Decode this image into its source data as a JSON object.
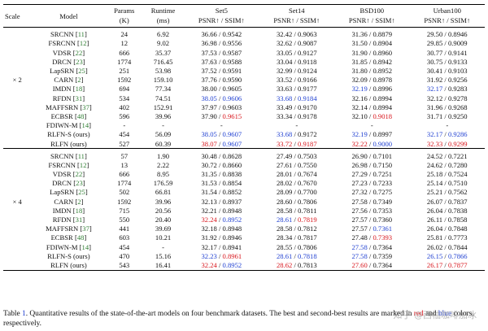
{
  "headers": {
    "scale": "Scale",
    "model": "Model",
    "params": "Params",
    "params_unit": "(K)",
    "runtime": "Runtime",
    "runtime_unit": "(ms)",
    "datasets": [
      "Set5",
      "Set14",
      "BSD100",
      "Urban100"
    ],
    "metric": "PSNR↑ / SSIM↑"
  },
  "groups": [
    {
      "scale": "× 2",
      "rows": [
        {
          "name": "SRCNN",
          "ref": "11",
          "params": "24",
          "runtime": "6.92",
          "bold": false,
          "cells": [
            {
              "p": "36.66",
              "s": "0.9542"
            },
            {
              "p": "32.42",
              "s": "0.9063"
            },
            {
              "p": "31.36",
              "s": "0.8879"
            },
            {
              "p": "29.50",
              "s": "0.8946"
            }
          ]
        },
        {
          "name": "FSRCNN",
          "ref": "12",
          "params": "12",
          "runtime": "9.02",
          "bold": false,
          "cells": [
            {
              "p": "36.98",
              "s": "0.9556"
            },
            {
              "p": "32.62",
              "s": "0.9087"
            },
            {
              "p": "31.50",
              "s": "0.8904"
            },
            {
              "p": "29.85",
              "s": "0.9009"
            }
          ]
        },
        {
          "name": "VDSR",
          "ref": "22",
          "params": "666",
          "runtime": "35.37",
          "bold": false,
          "cells": [
            {
              "p": "37.53",
              "s": "0.9587"
            },
            {
              "p": "33.05",
              "s": "0.9127"
            },
            {
              "p": "31.90",
              "s": "0.8960"
            },
            {
              "p": "30.77",
              "s": "0.9141"
            }
          ]
        },
        {
          "name": "DRCN",
          "ref": "23",
          "params": "1774",
          "runtime": "716.45",
          "bold": false,
          "cells": [
            {
              "p": "37.63",
              "s": "0.9588"
            },
            {
              "p": "33.04",
              "s": "0.9118"
            },
            {
              "p": "31.85",
              "s": "0.8942"
            },
            {
              "p": "30.75",
              "s": "0.9133"
            }
          ]
        },
        {
          "name": "LapSRN",
          "ref": "25",
          "params": "251",
          "runtime": "53.98",
          "bold": false,
          "cells": [
            {
              "p": "37.52",
              "s": "0.9591"
            },
            {
              "p": "32.99",
              "s": "0.9124"
            },
            {
              "p": "31.80",
              "s": "0.8952"
            },
            {
              "p": "30.41",
              "s": "0.9103"
            }
          ]
        },
        {
          "name": "CARN",
          "ref": "2",
          "params": "1592",
          "runtime": "159.10",
          "bold": false,
          "cells": [
            {
              "p": "37.76",
              "s": "0.9590"
            },
            {
              "p": "33.52",
              "s": "0.9166"
            },
            {
              "p": "32.09",
              "s": "0.8978"
            },
            {
              "p": "31.92",
              "s": "0.9256"
            }
          ]
        },
        {
          "name": "IMDN",
          "ref": "18",
          "params": "694",
          "runtime": "77.34",
          "bold": false,
          "cells": [
            {
              "p": "38.00",
              "s": "0.9605"
            },
            {
              "p": "33.63",
              "s": "0.9177"
            },
            {
              "p": "32.19",
              "s": "0.8996",
              "pc": "blue"
            },
            {
              "p": "32.17",
              "s": "0.9283",
              "pc": "blue"
            }
          ]
        },
        {
          "name": "RFDN",
          "ref": "31",
          "params": "534",
          "runtime": "74.51",
          "bold": false,
          "cells": [
            {
              "p": "38.05",
              "s": "0.9606",
              "pc": "blue",
              "sc": "blue"
            },
            {
              "p": "33.68",
              "s": "0.9184",
              "pc": "blue",
              "sc": "blue"
            },
            {
              "p": "32.16",
              "s": "0.8994"
            },
            {
              "p": "32.12",
              "s": "0.9278"
            }
          ]
        },
        {
          "name": "MAFFSRN",
          "ref": "37",
          "params": "402",
          "runtime": "152.91",
          "bold": false,
          "cells": [
            {
              "p": "37.97",
              "s": "0.9603"
            },
            {
              "p": "33.49",
              "s": "0.9170"
            },
            {
              "p": "32.14",
              "s": "0.8994"
            },
            {
              "p": "31.96",
              "s": "0.9268"
            }
          ]
        },
        {
          "name": "ECBSR",
          "ref": "48",
          "params": "596",
          "runtime": "39.96",
          "bold": false,
          "cells": [
            {
              "p": "37.90",
              "s": "0.9615",
              "sc": "red"
            },
            {
              "p": "33.34",
              "s": "0.9178"
            },
            {
              "p": "32.10",
              "s": "0.9018",
              "sc": "red"
            },
            {
              "p": "31.71",
              "s": "0.9250"
            }
          ]
        },
        {
          "name": "FDIWN-M",
          "ref": "14",
          "params": "-",
          "runtime": "-",
          "bold": false,
          "cells": [
            {
              "p": "-",
              "s": "-",
              "dash": true
            },
            {
              "p": "-",
              "s": "-",
              "dash": true
            },
            {
              "p": "-",
              "s": "-",
              "dash": true
            },
            {
              "p": "-",
              "s": "-",
              "dash": true
            }
          ]
        },
        {
          "name": "RLFN-S (ours)",
          "ref": "",
          "params": "454",
          "runtime": "56.09",
          "bold": true,
          "cells": [
            {
              "p": "38.05",
              "s": "0.9607",
              "pc": "blue",
              "sc": "blue"
            },
            {
              "p": "33.68",
              "s": "0.9172",
              "pc": "blue"
            },
            {
              "p": "32.19",
              "s": "0.8997",
              "pc": "blue"
            },
            {
              "p": "32.17",
              "s": "0.9286",
              "pc": "blue",
              "sc": "blue"
            }
          ]
        },
        {
          "name": "RLFN (ours)",
          "ref": "",
          "params": "527",
          "runtime": "60.39",
          "bold": true,
          "cells": [
            {
              "p": "38.07",
              "s": "0.9607",
              "pc": "red",
              "sc": "blue"
            },
            {
              "p": "33.72",
              "s": "0.9187",
              "pc": "red",
              "sc": "red"
            },
            {
              "p": "32.22",
              "s": "0.9000",
              "pc": "red",
              "sc": "blue"
            },
            {
              "p": "32.33",
              "s": "0.9299",
              "pc": "red",
              "sc": "red"
            }
          ]
        }
      ]
    },
    {
      "scale": "× 4",
      "rows": [
        {
          "name": "SRCNN",
          "ref": "11",
          "params": "57",
          "runtime": "1.90",
          "bold": false,
          "cells": [
            {
              "p": "30.48",
              "s": "0.8628"
            },
            {
              "p": "27.49",
              "s": "0.7503"
            },
            {
              "p": "26.90",
              "s": "0.7101"
            },
            {
              "p": "24.52",
              "s": "0.7221"
            }
          ]
        },
        {
          "name": "FSRCNN",
          "ref": "12",
          "params": "13",
          "runtime": "2.22",
          "bold": false,
          "cells": [
            {
              "p": "30.72",
              "s": "0.8660"
            },
            {
              "p": "27.61",
              "s": "0.7550"
            },
            {
              "p": "26.98",
              "s": "0.7150"
            },
            {
              "p": "24.62",
              "s": "0.7280"
            }
          ]
        },
        {
          "name": "VDSR",
          "ref": "22",
          "params": "666",
          "runtime": "8.95",
          "bold": false,
          "cells": [
            {
              "p": "31.35",
              "s": "0.8838"
            },
            {
              "p": "28.01",
              "s": "0.7674"
            },
            {
              "p": "27.29",
              "s": "0.7251"
            },
            {
              "p": "25.18",
              "s": "0.7524"
            }
          ]
        },
        {
          "name": "DRCN",
          "ref": "23",
          "params": "1774",
          "runtime": "176.59",
          "bold": false,
          "cells": [
            {
              "p": "31.53",
              "s": "0.8854"
            },
            {
              "p": "28.02",
              "s": "0.7670"
            },
            {
              "p": "27.23",
              "s": "0.7233"
            },
            {
              "p": "25.14",
              "s": "0.7510"
            }
          ]
        },
        {
          "name": "LapSRN",
          "ref": "25",
          "params": "502",
          "runtime": "66.81",
          "bold": false,
          "cells": [
            {
              "p": "31.54",
              "s": "0.8852"
            },
            {
              "p": "28.09",
              "s": "0.7700"
            },
            {
              "p": "27.32",
              "s": "0.7275"
            },
            {
              "p": "25.21",
              "s": "0.7562"
            }
          ]
        },
        {
          "name": "CARN",
          "ref": "2",
          "params": "1592",
          "runtime": "39.96",
          "bold": false,
          "cells": [
            {
              "p": "32.13",
              "s": "0.8937"
            },
            {
              "p": "28.60",
              "s": "0.7806"
            },
            {
              "p": "27.58",
              "s": "0.7349"
            },
            {
              "p": "26.07",
              "s": "0.7837"
            }
          ]
        },
        {
          "name": "IMDN",
          "ref": "18",
          "params": "715",
          "runtime": "20.56",
          "bold": false,
          "cells": [
            {
              "p": "32.21",
              "s": "0.8948"
            },
            {
              "p": "28.58",
              "s": "0.7811"
            },
            {
              "p": "27.56",
              "s": "0.7353"
            },
            {
              "p": "26.04",
              "s": "0.7838"
            }
          ]
        },
        {
          "name": "RFDN",
          "ref": "31",
          "params": "550",
          "runtime": "20.40",
          "bold": false,
          "cells": [
            {
              "p": "32.24",
              "s": "0.8952",
              "pc": "red",
              "sc": "blue"
            },
            {
              "p": "28.61",
              "s": "0.7819",
              "pc": "blue",
              "sc": "red"
            },
            {
              "p": "27.57",
              "s": "0.7360"
            },
            {
              "p": "26.11",
              "s": "0.7858"
            }
          ]
        },
        {
          "name": "MAFFSRN",
          "ref": "37",
          "params": "441",
          "runtime": "39.69",
          "bold": false,
          "cells": [
            {
              "p": "32.18",
              "s": "0.8948"
            },
            {
              "p": "28.58",
              "s": "0.7812"
            },
            {
              "p": "27.57",
              "s": "0.7361",
              "sc": "blue"
            },
            {
              "p": "26.04",
              "s": "0.7848"
            }
          ]
        },
        {
          "name": "ECBSR",
          "ref": "48",
          "params": "603",
          "runtime": "10.21",
          "bold": false,
          "cells": [
            {
              "p": "31.92",
              "s": "0.8946"
            },
            {
              "p": "28.34",
              "s": "0.7817"
            },
            {
              "p": "27.48",
              "s": "0.7393",
              "sc": "red"
            },
            {
              "p": "25.81",
              "s": "0.7773"
            }
          ]
        },
        {
          "name": "FDIWN-M",
          "ref": "14",
          "params": "454",
          "runtime": "-",
          "bold": false,
          "cells": [
            {
              "p": "32.17",
              "s": "0.8941"
            },
            {
              "p": "28.55",
              "s": "0.7806"
            },
            {
              "p": "27.58",
              "s": "0.7364",
              "pc": "blue"
            },
            {
              "p": "26.02",
              "s": "0.7844"
            }
          ]
        },
        {
          "name": "RLFN-S (ours)",
          "ref": "",
          "params": "470",
          "runtime": "15.16",
          "bold": true,
          "cells": [
            {
              "p": "32.23",
              "s": "0.8961",
              "pc": "blue",
              "sc": "red"
            },
            {
              "p": "28.61",
              "s": "0.7818",
              "pc": "blue",
              "sc": "blue"
            },
            {
              "p": "27.58",
              "s": "0.7359",
              "pc": "blue"
            },
            {
              "p": "26.15",
              "s": "0.7866",
              "pc": "blue",
              "sc": "blue"
            }
          ]
        },
        {
          "name": "RLFN (ours)",
          "ref": "",
          "params": "543",
          "runtime": "16.41",
          "bold": true,
          "cells": [
            {
              "p": "32.24",
              "s": "0.8952",
              "pc": "red",
              "sc": "blue"
            },
            {
              "p": "28.62",
              "s": "0.7813",
              "pc": "red"
            },
            {
              "p": "27.60",
              "s": "0.7364",
              "pc": "red"
            },
            {
              "p": "26.17",
              "s": "0.7877",
              "pc": "red",
              "sc": "red"
            }
          ]
        }
      ]
    }
  ],
  "caption": {
    "prefix": "Table ",
    "table_ref": "1",
    "text": ". Quantitative results of the state-of-the-art models on four benchmark datasets. The best and second-best results are marked in ",
    "red_word": "red",
    "and": " and ",
    "blue_word": "blue",
    "suffix": " colors, respectively."
  },
  "watermark": "知乎 @西柚咖啡加冰",
  "colors": {
    "red": "#d8141b",
    "blue": "#1f3fd1",
    "ref_green": "#2e7d32"
  }
}
